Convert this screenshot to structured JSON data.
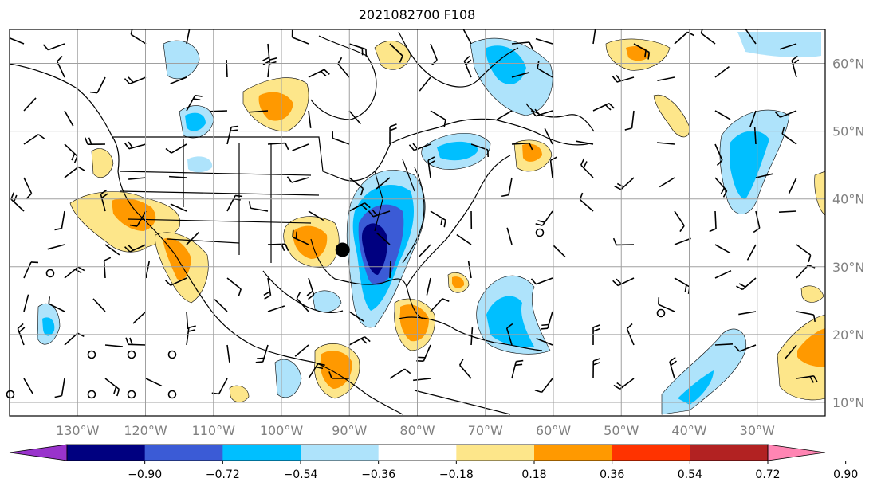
{
  "title": "2021082700 F108",
  "map": {
    "lon_range": [
      -140,
      -20
    ],
    "lat_range": [
      8,
      65
    ],
    "lon_ticks": [
      {
        "value": -130,
        "label": "130°W"
      },
      {
        "value": -120,
        "label": "120°W"
      },
      {
        "value": -110,
        "label": "110°W"
      },
      {
        "value": -100,
        "label": "100°W"
      },
      {
        "value": -90,
        "label": "90°W"
      },
      {
        "value": -80,
        "label": "80°W"
      },
      {
        "value": -70,
        "label": "70°W"
      },
      {
        "value": -60,
        "label": "60°W"
      },
      {
        "value": -50,
        "label": "50°W"
      },
      {
        "value": -40,
        "label": "40°W"
      },
      {
        "value": -30,
        "label": "30°W"
      }
    ],
    "lat_ticks": [
      {
        "value": 10,
        "label": "10°N"
      },
      {
        "value": 20,
        "label": "20°N"
      },
      {
        "value": 30,
        "label": "30°N"
      },
      {
        "value": 40,
        "label": "40°N"
      },
      {
        "value": 50,
        "label": "50°N"
      },
      {
        "value": 60,
        "label": "60°N"
      }
    ],
    "grid": true,
    "marker": {
      "lon": -91,
      "lat": 32.5
    }
  },
  "colorbar": {
    "ticks": [
      "−0.90",
      "−0.72",
      "−0.54",
      "−0.36",
      "−0.18",
      "0.18",
      "0.36",
      "0.54",
      "0.72",
      "0.90"
    ],
    "colors": [
      "#9933cc",
      "#000080",
      "#3b5bd6",
      "#00bfff",
      "#aee3fb",
      "#ffffff",
      "#fde68a",
      "#ff9900",
      "#ff3300",
      "#b22222",
      "#ff85b3"
    ]
  }
}
